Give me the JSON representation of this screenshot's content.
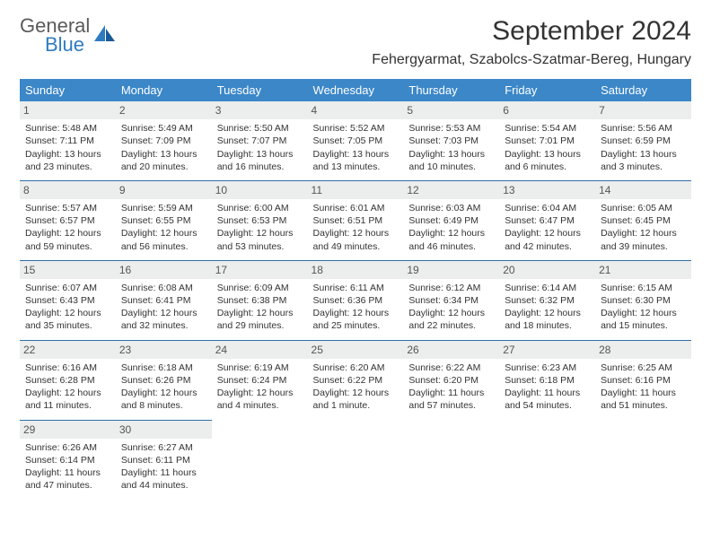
{
  "brand": {
    "general": "General",
    "blue": "Blue"
  },
  "title": "September 2024",
  "location": "Fehergyarmat, Szabolcs-Szatmar-Bereg, Hungary",
  "colors": {
    "header_bg": "#3b87c8",
    "header_text": "#ffffff",
    "daynum_bg": "#eceded",
    "rule": "#2f6fa8",
    "body_text": "#333333",
    "logo_gray": "#5a5a5a",
    "logo_blue": "#2f7bbf"
  },
  "weekdays": [
    "Sunday",
    "Monday",
    "Tuesday",
    "Wednesday",
    "Thursday",
    "Friday",
    "Saturday"
  ],
  "weeks": [
    [
      {
        "n": "1",
        "sr": "Sunrise: 5:48 AM",
        "ss": "Sunset: 7:11 PM",
        "d1": "Daylight: 13 hours",
        "d2": "and 23 minutes."
      },
      {
        "n": "2",
        "sr": "Sunrise: 5:49 AM",
        "ss": "Sunset: 7:09 PM",
        "d1": "Daylight: 13 hours",
        "d2": "and 20 minutes."
      },
      {
        "n": "3",
        "sr": "Sunrise: 5:50 AM",
        "ss": "Sunset: 7:07 PM",
        "d1": "Daylight: 13 hours",
        "d2": "and 16 minutes."
      },
      {
        "n": "4",
        "sr": "Sunrise: 5:52 AM",
        "ss": "Sunset: 7:05 PM",
        "d1": "Daylight: 13 hours",
        "d2": "and 13 minutes."
      },
      {
        "n": "5",
        "sr": "Sunrise: 5:53 AM",
        "ss": "Sunset: 7:03 PM",
        "d1": "Daylight: 13 hours",
        "d2": "and 10 minutes."
      },
      {
        "n": "6",
        "sr": "Sunrise: 5:54 AM",
        "ss": "Sunset: 7:01 PM",
        "d1": "Daylight: 13 hours",
        "d2": "and 6 minutes."
      },
      {
        "n": "7",
        "sr": "Sunrise: 5:56 AM",
        "ss": "Sunset: 6:59 PM",
        "d1": "Daylight: 13 hours",
        "d2": "and 3 minutes."
      }
    ],
    [
      {
        "n": "8",
        "sr": "Sunrise: 5:57 AM",
        "ss": "Sunset: 6:57 PM",
        "d1": "Daylight: 12 hours",
        "d2": "and 59 minutes."
      },
      {
        "n": "9",
        "sr": "Sunrise: 5:59 AM",
        "ss": "Sunset: 6:55 PM",
        "d1": "Daylight: 12 hours",
        "d2": "and 56 minutes."
      },
      {
        "n": "10",
        "sr": "Sunrise: 6:00 AM",
        "ss": "Sunset: 6:53 PM",
        "d1": "Daylight: 12 hours",
        "d2": "and 53 minutes."
      },
      {
        "n": "11",
        "sr": "Sunrise: 6:01 AM",
        "ss": "Sunset: 6:51 PM",
        "d1": "Daylight: 12 hours",
        "d2": "and 49 minutes."
      },
      {
        "n": "12",
        "sr": "Sunrise: 6:03 AM",
        "ss": "Sunset: 6:49 PM",
        "d1": "Daylight: 12 hours",
        "d2": "and 46 minutes."
      },
      {
        "n": "13",
        "sr": "Sunrise: 6:04 AM",
        "ss": "Sunset: 6:47 PM",
        "d1": "Daylight: 12 hours",
        "d2": "and 42 minutes."
      },
      {
        "n": "14",
        "sr": "Sunrise: 6:05 AM",
        "ss": "Sunset: 6:45 PM",
        "d1": "Daylight: 12 hours",
        "d2": "and 39 minutes."
      }
    ],
    [
      {
        "n": "15",
        "sr": "Sunrise: 6:07 AM",
        "ss": "Sunset: 6:43 PM",
        "d1": "Daylight: 12 hours",
        "d2": "and 35 minutes."
      },
      {
        "n": "16",
        "sr": "Sunrise: 6:08 AM",
        "ss": "Sunset: 6:41 PM",
        "d1": "Daylight: 12 hours",
        "d2": "and 32 minutes."
      },
      {
        "n": "17",
        "sr": "Sunrise: 6:09 AM",
        "ss": "Sunset: 6:38 PM",
        "d1": "Daylight: 12 hours",
        "d2": "and 29 minutes."
      },
      {
        "n": "18",
        "sr": "Sunrise: 6:11 AM",
        "ss": "Sunset: 6:36 PM",
        "d1": "Daylight: 12 hours",
        "d2": "and 25 minutes."
      },
      {
        "n": "19",
        "sr": "Sunrise: 6:12 AM",
        "ss": "Sunset: 6:34 PM",
        "d1": "Daylight: 12 hours",
        "d2": "and 22 minutes."
      },
      {
        "n": "20",
        "sr": "Sunrise: 6:14 AM",
        "ss": "Sunset: 6:32 PM",
        "d1": "Daylight: 12 hours",
        "d2": "and 18 minutes."
      },
      {
        "n": "21",
        "sr": "Sunrise: 6:15 AM",
        "ss": "Sunset: 6:30 PM",
        "d1": "Daylight: 12 hours",
        "d2": "and 15 minutes."
      }
    ],
    [
      {
        "n": "22",
        "sr": "Sunrise: 6:16 AM",
        "ss": "Sunset: 6:28 PM",
        "d1": "Daylight: 12 hours",
        "d2": "and 11 minutes."
      },
      {
        "n": "23",
        "sr": "Sunrise: 6:18 AM",
        "ss": "Sunset: 6:26 PM",
        "d1": "Daylight: 12 hours",
        "d2": "and 8 minutes."
      },
      {
        "n": "24",
        "sr": "Sunrise: 6:19 AM",
        "ss": "Sunset: 6:24 PM",
        "d1": "Daylight: 12 hours",
        "d2": "and 4 minutes."
      },
      {
        "n": "25",
        "sr": "Sunrise: 6:20 AM",
        "ss": "Sunset: 6:22 PM",
        "d1": "Daylight: 12 hours",
        "d2": "and 1 minute."
      },
      {
        "n": "26",
        "sr": "Sunrise: 6:22 AM",
        "ss": "Sunset: 6:20 PM",
        "d1": "Daylight: 11 hours",
        "d2": "and 57 minutes."
      },
      {
        "n": "27",
        "sr": "Sunrise: 6:23 AM",
        "ss": "Sunset: 6:18 PM",
        "d1": "Daylight: 11 hours",
        "d2": "and 54 minutes."
      },
      {
        "n": "28",
        "sr": "Sunrise: 6:25 AM",
        "ss": "Sunset: 6:16 PM",
        "d1": "Daylight: 11 hours",
        "d2": "and 51 minutes."
      }
    ],
    [
      {
        "n": "29",
        "sr": "Sunrise: 6:26 AM",
        "ss": "Sunset: 6:14 PM",
        "d1": "Daylight: 11 hours",
        "d2": "and 47 minutes."
      },
      {
        "n": "30",
        "sr": "Sunrise: 6:27 AM",
        "ss": "Sunset: 6:11 PM",
        "d1": "Daylight: 11 hours",
        "d2": "and 44 minutes."
      },
      null,
      null,
      null,
      null,
      null
    ]
  ]
}
